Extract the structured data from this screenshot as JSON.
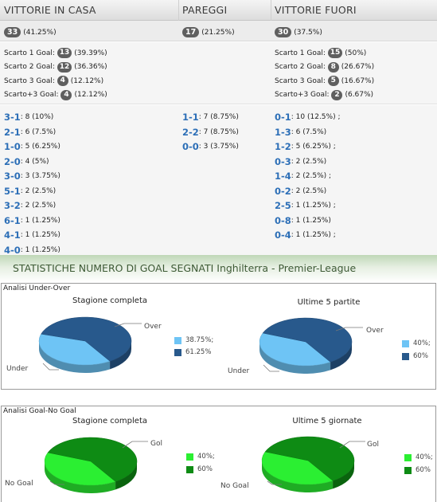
{
  "header": {
    "col1": "VITTORIE IN CASA",
    "col2": "PAREGGI",
    "col3": "VITTORIE FUORI"
  },
  "totals": {
    "home": {
      "count": "33",
      "pct": "(41.25%)"
    },
    "draw": {
      "count": "17",
      "pct": "(21.25%)"
    },
    "away": {
      "count": "30",
      "pct": "(37.5%)"
    }
  },
  "margins": {
    "home": [
      {
        "label": "Scarto 1 Goal:",
        "count": "13",
        "pct": "(39.39%)"
      },
      {
        "label": "Scarto 2 Goal:",
        "count": "12",
        "pct": "(36.36%)"
      },
      {
        "label": "Scarto 3 Goal:",
        "count": "4",
        "pct": "(12.12%)"
      },
      {
        "label": "Scarto+3 Goal:",
        "count": "4",
        "pct": "(12.12%)"
      }
    ],
    "away": [
      {
        "label": "Scarto 1 Goal:",
        "count": "15",
        "pct": "(50%)"
      },
      {
        "label": "Scarto 2 Goal:",
        "count": "8",
        "pct": "(26.67%)"
      },
      {
        "label": "Scarto 3 Goal:",
        "count": "5",
        "pct": "(16.67%)"
      },
      {
        "label": "Scarto+3 Goal:",
        "count": "2",
        "pct": "(6.67%)"
      }
    ]
  },
  "results": {
    "home": [
      {
        "score": "3-1",
        "detail": ": 8 (10%)"
      },
      {
        "score": "2-1",
        "detail": ": 6 (7.5%)"
      },
      {
        "score": "1-0",
        "detail": ": 5 (6.25%)"
      },
      {
        "score": "2-0",
        "detail": ": 4 (5%)"
      },
      {
        "score": "3-0",
        "detail": ": 3 (3.75%)"
      },
      {
        "score": "5-1",
        "detail": ": 2 (2.5%)"
      },
      {
        "score": "3-2",
        "detail": ": 2 (2.5%)"
      },
      {
        "score": "6-1",
        "detail": ": 1 (1.25%)"
      },
      {
        "score": "4-1",
        "detail": ": 1 (1.25%)"
      },
      {
        "score": "4-0",
        "detail": ": 1 (1.25%)"
      }
    ],
    "draw": [
      {
        "score": "1-1",
        "detail": ": 7 (8.75%)"
      },
      {
        "score": "2-2",
        "detail": ": 7 (8.75%)"
      },
      {
        "score": "0-0",
        "detail": ": 3 (3.75%)"
      }
    ],
    "away": [
      {
        "score": "0-1",
        "detail": ": 10 (12.5%) ;"
      },
      {
        "score": "1-3",
        "detail": ": 6 (7.5%)"
      },
      {
        "score": "1-2",
        "detail": ": 5 (6.25%) ;"
      },
      {
        "score": "0-3",
        "detail": ": 2 (2.5%)"
      },
      {
        "score": "1-4",
        "detail": ": 2 (2.5%) ;"
      },
      {
        "score": "0-2",
        "detail": ": 2 (2.5%)"
      },
      {
        "score": "2-5",
        "detail": ": 1 (1.25%) ;"
      },
      {
        "score": "0-8",
        "detail": ": 1 (1.25%)"
      },
      {
        "score": "0-4",
        "detail": ": 1 (1.25%) ;"
      }
    ]
  },
  "section_title": "STATISTICHE NUMERO DI GOAL SEGNATI Inghilterra - Premier-League",
  "chart_data": [
    {
      "type": "pie",
      "panel": "Analisi Under-Over",
      "title": "Stagione completa",
      "slices": [
        {
          "name": "Under",
          "value": 38.75,
          "legend": "38.75%;",
          "color": "#6ec4f5"
        },
        {
          "name": "Over",
          "value": 61.25,
          "legend": "61.25%",
          "color": "#28598c"
        }
      ]
    },
    {
      "type": "pie",
      "panel": "Analisi Under-Over",
      "title": "Ultime 5 partite",
      "slices": [
        {
          "name": "Under",
          "value": 40,
          "legend": "40%;",
          "color": "#6ec4f5"
        },
        {
          "name": "Over",
          "value": 60,
          "legend": "60%",
          "color": "#28598c"
        }
      ]
    },
    {
      "type": "pie",
      "panel": "Analisi Goal-No Goal",
      "title": "Stagione completa",
      "slices": [
        {
          "name": "No Goal",
          "value": 40,
          "legend": "40%;",
          "color": "#2bef32"
        },
        {
          "name": "Gol",
          "value": 60,
          "legend": "60%",
          "color": "#0e8b14"
        }
      ]
    },
    {
      "type": "pie",
      "panel": "Analisi Goal-No Goal",
      "title": "Ultime 5 giornate",
      "slices": [
        {
          "name": "No Goal",
          "value": 40,
          "legend": "40%;",
          "color": "#2bef32"
        },
        {
          "name": "Gol",
          "value": 60,
          "legend": "60%",
          "color": "#0e8b14"
        }
      ]
    }
  ]
}
